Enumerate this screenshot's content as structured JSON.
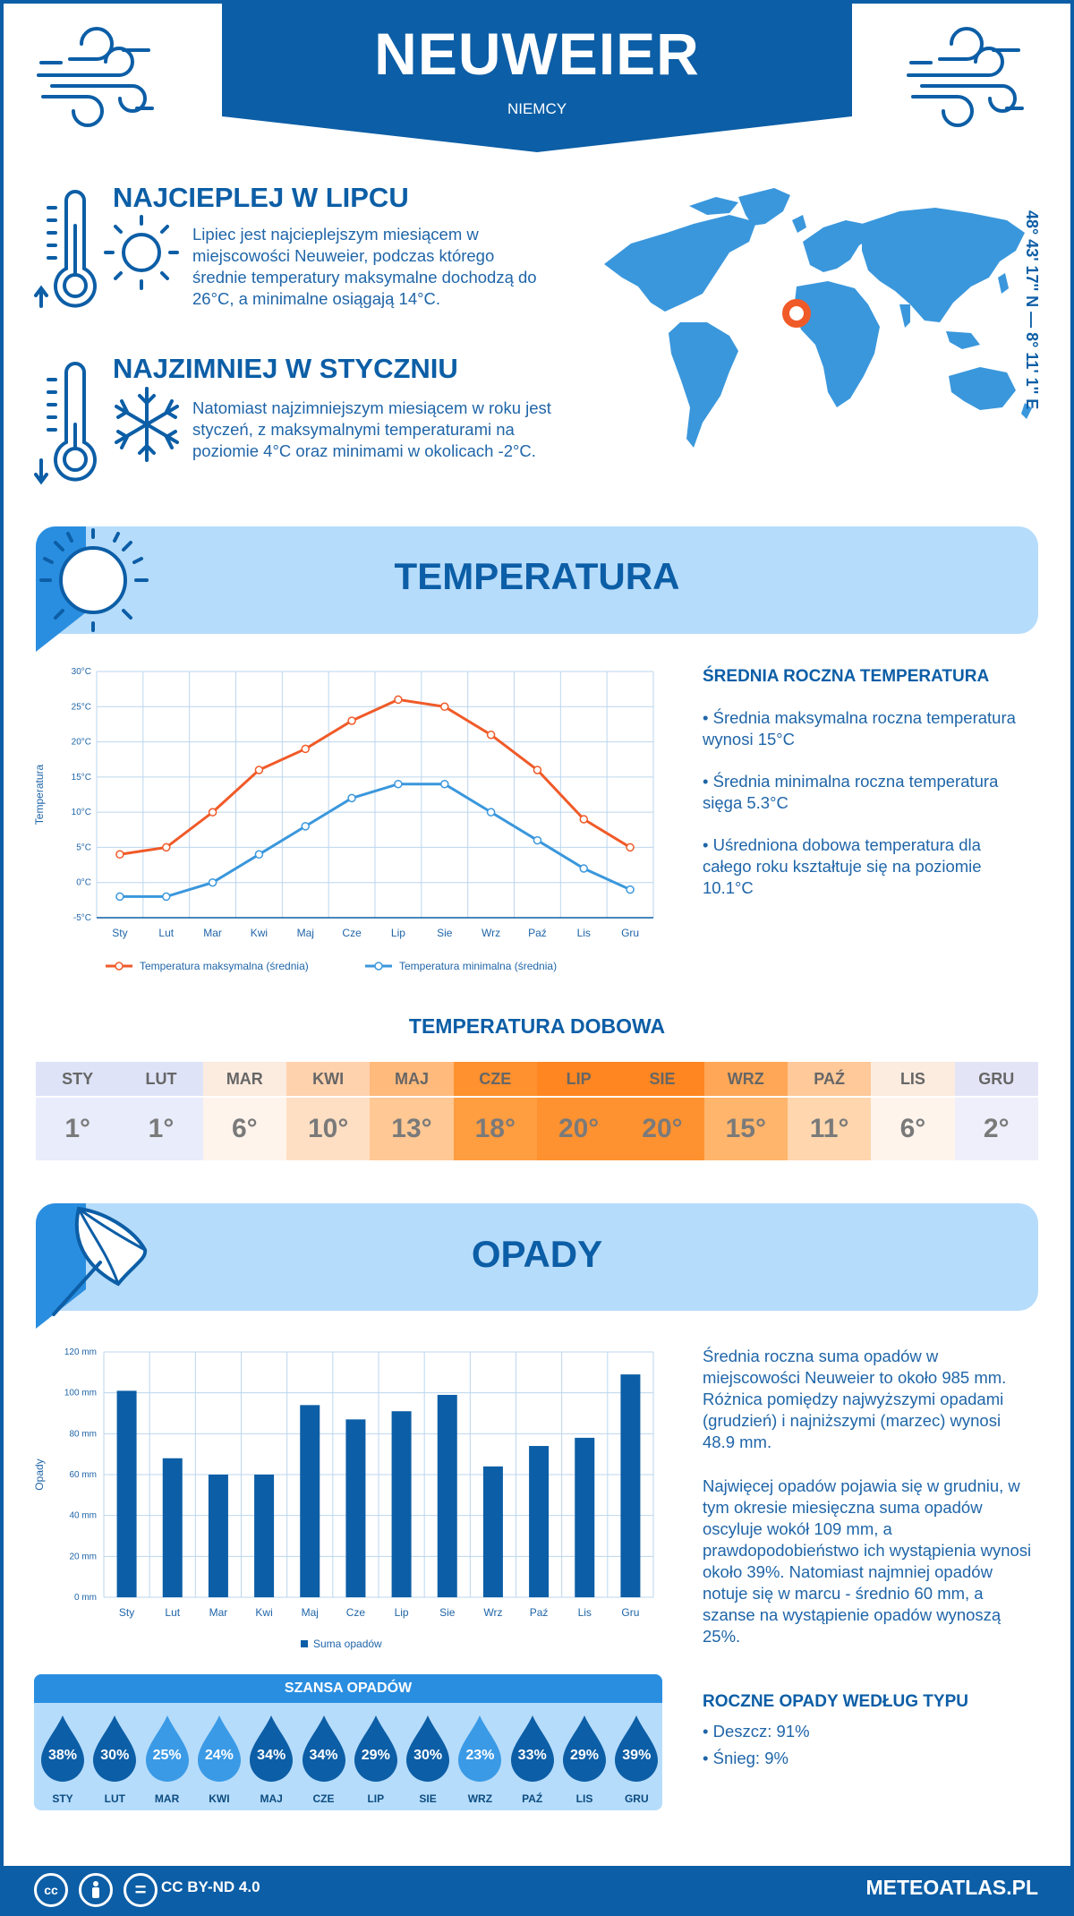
{
  "header": {
    "city": "NEUWEIER",
    "country": "NIEMCY"
  },
  "hottest": {
    "title": "NAJCIEPLEJ W LIPCU",
    "text": "Lipiec jest najcieplejszym miesiącem w miejscowości Neuweier, podczas którego średnie temperatury maksymalne dochodzą do 26°C, a minimalne osiągają 14°C."
  },
  "coldest": {
    "title": "NAJZIMNIEJ W STYCZNIU",
    "text": "Natomiast najzimniejszym miesiącem w roku jest styczeń, z maksymalnymi temperaturami na poziomie 4°C oraz minimami w okolicach -2°C."
  },
  "coordinates": "48° 43' 17'' N — 8° 11' 1'' E",
  "temperature_section": {
    "title": "TEMPERATURA",
    "annual_title": "ŚREDNIA ROCZNA TEMPERATURA",
    "bullets": [
      "• Średnia maksymalna roczna temperatura wynosi 15°C",
      "• Średnia minimalna roczna temperatura sięga 5.3°C",
      "• Uśredniona dobowa temperatura dla całego roku kształtuje się na poziomie 10.1°C"
    ],
    "daily_title": "TEMPERATURA DOBOWA"
  },
  "daily": {
    "months": [
      "STY",
      "LUT",
      "MAR",
      "KWI",
      "MAJ",
      "CZE",
      "LIP",
      "SIE",
      "WRZ",
      "PAŹ",
      "LIS",
      "GRU"
    ],
    "values": [
      "1°",
      "1°",
      "6°",
      "10°",
      "13°",
      "18°",
      "20°",
      "20°",
      "15°",
      "11°",
      "6°",
      "2°"
    ],
    "colors": [
      "#e8ecfb",
      "#e8ecfb",
      "#fff4ec",
      "#ffdfc3",
      "#ffc894",
      "#ff9d41",
      "#ff9230",
      "#ff9230",
      "#ffb56c",
      "#ffd6ae",
      "#fff4ec",
      "#eeeffb"
    ],
    "header_colors": [
      "#dee3f7",
      "#dee3f7",
      "#fcebdf",
      "#ffd2ae",
      "#ffba7c",
      "#ff912e",
      "#ff8620",
      "#ff8620",
      "#ffa757",
      "#ffc999",
      "#fcebdf",
      "#e3e5f7"
    ]
  },
  "precip_section": {
    "title": "OPADY",
    "text1": "Średnia roczna suma opadów w miejscowości Neuweier to około 985 mm. Różnica pomiędzy najwyższymi opadami (grudzień) i najniższymi (marzec) wynosi 48.9 mm.",
    "text2": "Najwięcej opadów pojawia się w grudniu, w tym okresie miesięczna suma opadów oscyluje wokół 109 mm, a prawdopodobieństwo ich wystąpienia wynosi około 39%. Natomiast najmniej opadów notuje się w marcu - średnio 60 mm, a szanse na wystąpienie opadów wynoszą 25%.",
    "type_title": "ROCZNE OPADY WEDŁUG TYPU",
    "types": [
      "• Deszcz: 91%",
      "• Śnieg: 9%"
    ]
  },
  "chance": {
    "title": "SZANSA OPADÓW",
    "months": [
      "STY",
      "LUT",
      "MAR",
      "KWI",
      "MAJ",
      "CZE",
      "LIP",
      "SIE",
      "WRZ",
      "PAŹ",
      "LIS",
      "GRU"
    ],
    "values": [
      "38%",
      "30%",
      "25%",
      "24%",
      "34%",
      "34%",
      "29%",
      "30%",
      "23%",
      "33%",
      "29%",
      "39%"
    ],
    "colors": [
      "#0c5ea6",
      "#0c5ea6",
      "#3a9ae6",
      "#3a9ae6",
      "#0c5ea6",
      "#0c5ea6",
      "#0c5ea6",
      "#0c5ea6",
      "#3a9ae6",
      "#0c5ea6",
      "#0c5ea6",
      "#0c5ea6"
    ]
  },
  "footer": {
    "license": "CC BY-ND 4.0",
    "site": "METEOATLAS.PL",
    "cc_label": "cc",
    "eq_label": "="
  },
  "chart_data": [
    {
      "type": "line",
      "categories": [
        "Sty",
        "Lut",
        "Mar",
        "Kwi",
        "Maj",
        "Cze",
        "Lip",
        "Sie",
        "Wrz",
        "Paź",
        "Lis",
        "Gru"
      ],
      "series": [
        {
          "name": "Temperatura maksymalna (średnia)",
          "color": "#f05a28",
          "values": [
            4,
            5,
            10,
            16,
            19,
            23,
            26,
            25,
            21,
            16,
            9,
            5
          ]
        },
        {
          "name": "Temperatura minimalna (średnia)",
          "color": "#3a97dc",
          "values": [
            -2,
            -2,
            0,
            4,
            8,
            12,
            14,
            14,
            10,
            6,
            2,
            -1
          ]
        }
      ],
      "ylabel": "Temperatura",
      "ylim": [
        -5,
        30
      ],
      "yticks": [
        "-5°C",
        "0°C",
        "5°C",
        "10°C",
        "15°C",
        "20°C",
        "25°C",
        "30°C"
      ],
      "grid": true,
      "legend": "bottom"
    },
    {
      "type": "bar",
      "categories": [
        "Sty",
        "Lut",
        "Mar",
        "Kwi",
        "Maj",
        "Cze",
        "Lip",
        "Sie",
        "Wrz",
        "Paź",
        "Lis",
        "Gru"
      ],
      "series": [
        {
          "name": "Suma opadów",
          "color": "#0c5ea6",
          "values": [
            101,
            68,
            60,
            60,
            94,
            87,
            91,
            99,
            64,
            74,
            78,
            109
          ]
        }
      ],
      "ylabel": "Opady",
      "ylim": [
        0,
        120
      ],
      "yticks": [
        "0 mm",
        "20 mm",
        "40 mm",
        "60 mm",
        "80 mm",
        "100 mm",
        "120 mm"
      ],
      "grid": true,
      "legend": "bottom"
    }
  ]
}
